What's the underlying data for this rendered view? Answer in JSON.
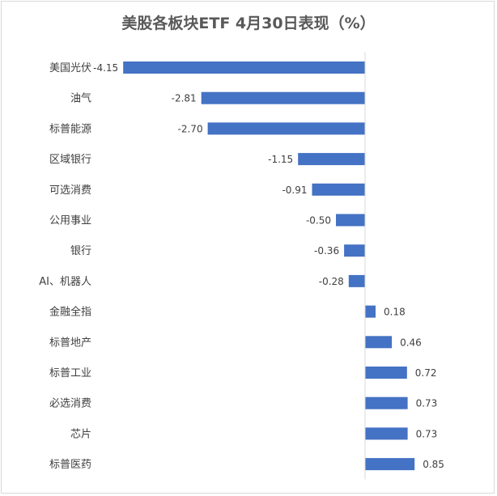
{
  "chart_data": {
    "type": "bar",
    "orientation": "horizontal",
    "title": "美股各板块ETF 4月30日表现（%）",
    "xlabel": "",
    "ylabel": "",
    "categories": [
      "美国光伏",
      "油气",
      "标普能源",
      "区域银行",
      "可选消费",
      "公用事业",
      "银行",
      "AI、机器人",
      "金融全指",
      "标普地产",
      "标普工业",
      "必选消费",
      "芯片",
      "标普医药"
    ],
    "values": [
      -4.15,
      -2.81,
      -2.7,
      -1.15,
      -0.91,
      -0.5,
      -0.36,
      -0.28,
      0.18,
      0.46,
      0.72,
      0.73,
      0.73,
      0.85
    ],
    "value_labels": [
      "-4.15",
      "-2.81",
      "-2.70",
      "-1.15",
      "-0.91",
      "-0.50",
      "-0.36",
      "-0.28",
      "0.18",
      "0.46",
      "0.72",
      "0.73",
      "0.73",
      "0.85"
    ],
    "xlim": [
      -4.15,
      0.85
    ],
    "grid": false,
    "legend": "none",
    "bar_color": "#4472C4"
  }
}
